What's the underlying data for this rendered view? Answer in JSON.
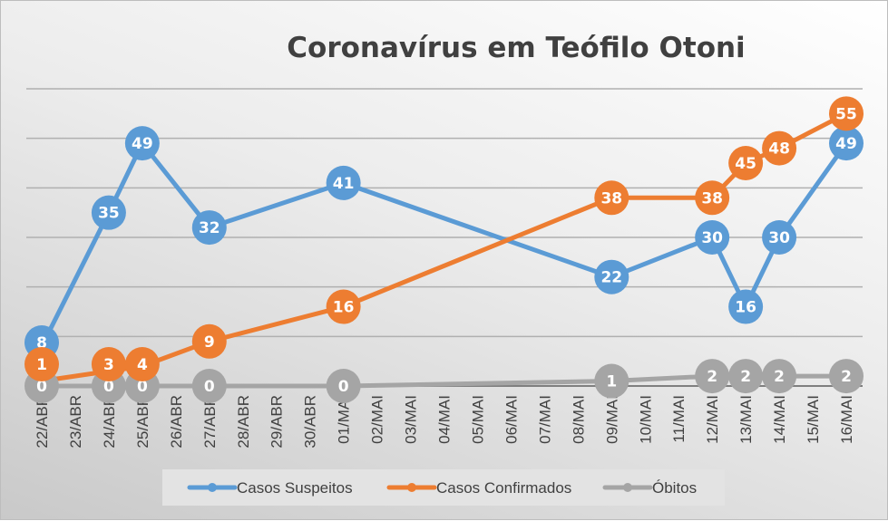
{
  "chart_data": {
    "type": "line",
    "title": "Coronavírus em Teófilo Otoni",
    "xlabel": "",
    "ylabel": "",
    "ylim": [
      0,
      60
    ],
    "grid": true,
    "legend_position": "bottom",
    "categories": [
      "22/ABR",
      "23/ABR",
      "24/ABR",
      "25/ABR",
      "26/ABR",
      "27/ABR",
      "28/ABR",
      "29/ABR",
      "30/ABR",
      "01/MAI",
      "02/MAI",
      "03/MAI",
      "04/MAI",
      "05/MAI",
      "06/MAI",
      "07/MAI",
      "08/MAI",
      "09/MAI",
      "10/MAI",
      "11/MAI",
      "12/MAI",
      "13/MAI",
      "14/MAI",
      "15/MAI",
      "16/MAI"
    ],
    "series": [
      {
        "name": "Casos Suspeitos",
        "color": "#5b9bd5",
        "points": [
          [
            "22/ABR",
            8
          ],
          [
            "24/ABR",
            35
          ],
          [
            "25/ABR",
            49
          ],
          [
            "27/ABR",
            32
          ],
          [
            "01/MAI",
            41
          ],
          [
            "09/MAI",
            22
          ],
          [
            "12/MAI",
            30
          ],
          [
            "13/MAI",
            16
          ],
          [
            "14/MAI",
            30
          ],
          [
            "16/MAI",
            49
          ]
        ]
      },
      {
        "name": "Casos Confirmados",
        "color": "#ed7d31",
        "points": [
          [
            "22/ABR",
            1
          ],
          [
            "24/ABR",
            3
          ],
          [
            "25/ABR",
            4
          ],
          [
            "27/ABR",
            9
          ],
          [
            "01/MAI",
            16
          ],
          [
            "09/MAI",
            38
          ],
          [
            "12/MAI",
            38
          ],
          [
            "13/MAI",
            45
          ],
          [
            "14/MAI",
            48
          ],
          [
            "16/MAI",
            55
          ]
        ]
      },
      {
        "name": "Óbitos",
        "color": "#a5a5a5",
        "points": [
          [
            "22/ABR",
            0
          ],
          [
            "24/ABR",
            0
          ],
          [
            "25/ABR",
            0
          ],
          [
            "27/ABR",
            0
          ],
          [
            "01/MAI",
            0
          ],
          [
            "09/MAI",
            1
          ],
          [
            "12/MAI",
            2
          ],
          [
            "13/MAI",
            2
          ],
          [
            "14/MAI",
            2
          ],
          [
            "16/MAI",
            2
          ]
        ]
      }
    ]
  }
}
